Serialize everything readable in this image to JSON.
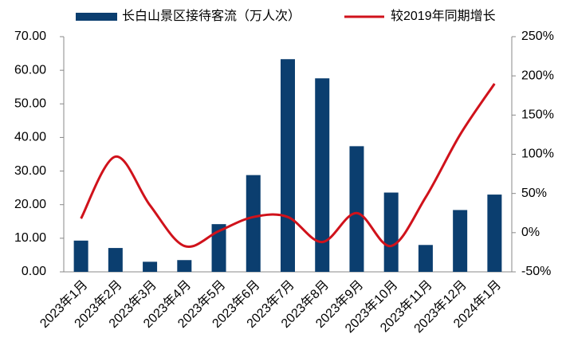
{
  "chart_data": {
    "type": "bar-line",
    "categories": [
      "2023年1月",
      "2023年2月",
      "2023年3月",
      "2023年4月",
      "2023年5月",
      "2023年6月",
      "2023年7月",
      "2023年8月",
      "2023年9月",
      "2023年10月",
      "2023年11月",
      "2023年12月",
      "2024年1月"
    ],
    "series": [
      {
        "name": "长白山景区接待客流（万人次）",
        "type": "bar",
        "color": "#0b3e6f",
        "values": [
          9.3,
          7.1,
          3.0,
          3.5,
          14.2,
          28.8,
          63.3,
          57.6,
          37.4,
          23.6,
          8.0,
          18.4,
          23.0
        ]
      },
      {
        "name": "较2019年同期增长",
        "type": "line",
        "axis": "y2",
        "color": "#d0121b",
        "values": [
          18,
          97,
          35,
          -17,
          2,
          20,
          20,
          -12,
          25,
          -17,
          45,
          125,
          190
        ]
      }
    ],
    "ylim": [
      0,
      70
    ],
    "yticks": [
      {
        "value": 0,
        "label": "0.00"
      },
      {
        "value": 10,
        "label": "10.00"
      },
      {
        "value": 20,
        "label": "20.00"
      },
      {
        "value": 30,
        "label": "30.00"
      },
      {
        "value": 40,
        "label": "40.00"
      },
      {
        "value": 50,
        "label": "50.00"
      },
      {
        "value": 60,
        "label": "60.00"
      },
      {
        "value": 70,
        "label": "70.00"
      }
    ],
    "y2lim": [
      -50,
      250
    ],
    "y2ticks": [
      {
        "value": -50,
        "label": "-50%"
      },
      {
        "value": 0,
        "label": "0%"
      },
      {
        "value": 50,
        "label": "50%"
      },
      {
        "value": 100,
        "label": "100%"
      },
      {
        "value": 150,
        "label": "150%"
      },
      {
        "value": 200,
        "label": "200%"
      },
      {
        "value": 250,
        "label": "250%"
      }
    ],
    "legend": "top"
  }
}
